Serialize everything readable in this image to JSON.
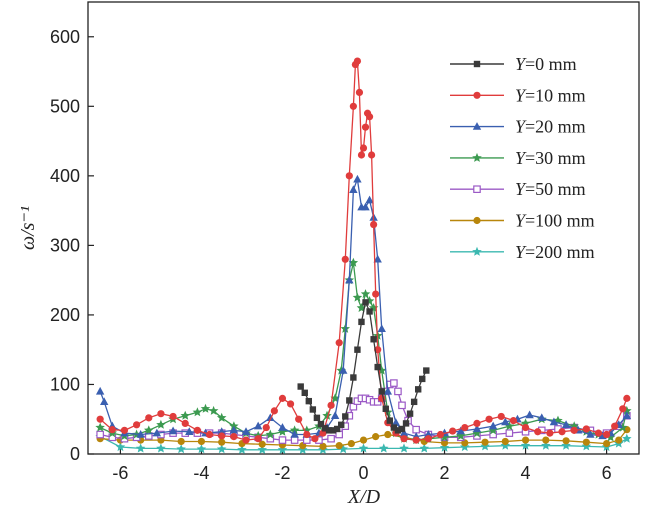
{
  "chart_data": {
    "type": "line",
    "xlabel": "X/D",
    "ylabel": "ω/s⁻¹",
    "xlim": [
      -6.8,
      6.8
    ],
    "ylim": [
      0,
      650
    ],
    "xticks": [
      "-6",
      "-4",
      "-2",
      "0",
      "2",
      "4",
      "6"
    ],
    "xtick_values": [
      -6,
      -4,
      -2,
      0,
      2,
      4,
      6
    ],
    "yticks": [
      "0",
      "100",
      "200",
      "300",
      "400",
      "500",
      "600"
    ],
    "ytick_values": [
      0,
      100,
      200,
      300,
      400,
      500,
      600
    ],
    "legend_position": "top-right",
    "series": [
      {
        "name": "Y=0 mm",
        "prefix": "Y",
        "suffix": "=0 mm",
        "color": "#3a3a3a",
        "marker": "square-filled",
        "x": [
          -1.55,
          -1.45,
          -1.35,
          -1.25,
          -1.15,
          -1.05,
          -0.95,
          -0.85,
          -0.75,
          -0.65,
          -0.55,
          -0.45,
          -0.35,
          -0.25,
          -0.15,
          -0.05,
          0.05,
          0.15,
          0.25,
          0.35,
          0.45,
          0.55,
          0.65,
          0.75,
          0.85,
          0.95,
          1.05,
          1.15,
          1.25,
          1.35,
          1.45,
          1.55
        ],
        "y": [
          97,
          88,
          76,
          64,
          52,
          43,
          37,
          34,
          34,
          36,
          42,
          54,
          77,
          110,
          150,
          190,
          218,
          205,
          165,
          125,
          90,
          65,
          48,
          38,
          34,
          36,
          44,
          58,
          75,
          93,
          108,
          120
        ]
      },
      {
        "name": "Y=10 mm",
        "prefix": "Y",
        "suffix": "=10 mm",
        "color": "#e03c3c",
        "marker": "circle-filled",
        "x": [
          -6.5,
          -6.2,
          -5.9,
          -5.6,
          -5.3,
          -5.0,
          -4.7,
          -4.4,
          -4.1,
          -3.8,
          -3.5,
          -3.2,
          -2.9,
          -2.6,
          -2.4,
          -2.2,
          -2.0,
          -1.8,
          -1.6,
          -1.4,
          -1.2,
          -1.0,
          -0.8,
          -0.6,
          -0.45,
          -0.35,
          -0.25,
          -0.2,
          -0.15,
          -0.1,
          -0.05,
          0.0,
          0.05,
          0.1,
          0.15,
          0.2,
          0.25,
          0.3,
          0.35,
          0.45,
          0.6,
          0.8,
          1.0,
          1.3,
          1.6,
          1.9,
          2.2,
          2.5,
          2.8,
          3.1,
          3.4,
          3.7,
          4.0,
          4.3,
          4.6,
          4.9,
          5.2,
          5.5,
          5.8,
          6.0,
          6.2,
          6.4,
          6.5
        ],
        "y": [
          50,
          35,
          34,
          42,
          52,
          58,
          54,
          44,
          34,
          28,
          26,
          25,
          20,
          22,
          38,
          62,
          80,
          72,
          50,
          28,
          22,
          30,
          70,
          160,
          280,
          400,
          500,
          560,
          565,
          520,
          430,
          440,
          470,
          490,
          485,
          430,
          330,
          230,
          150,
          80,
          45,
          30,
          22,
          20,
          22,
          28,
          33,
          38,
          44,
          50,
          54,
          48,
          38,
          32,
          30,
          32,
          34,
          36,
          30,
          28,
          40,
          65,
          80
        ]
      },
      {
        "name": "Y=20 mm",
        "prefix": "Y",
        "suffix": "=20 mm",
        "color": "#3a5fb0",
        "marker": "triangle-filled",
        "x": [
          -6.5,
          -6.4,
          -6.2,
          -5.9,
          -5.5,
          -5.1,
          -4.7,
          -4.3,
          -3.9,
          -3.5,
          -3.2,
          -2.9,
          -2.6,
          -2.3,
          -2.0,
          -1.7,
          -1.4,
          -1.1,
          -0.9,
          -0.7,
          -0.5,
          -0.35,
          -0.25,
          -0.15,
          -0.05,
          0.05,
          0.15,
          0.25,
          0.35,
          0.45,
          0.6,
          0.8,
          1.0,
          1.3,
          1.6,
          2.0,
          2.4,
          2.8,
          3.2,
          3.5,
          3.8,
          4.1,
          4.4,
          4.7,
          5.0,
          5.3,
          5.6,
          5.9,
          6.1,
          6.3,
          6.5
        ],
        "y": [
          90,
          75,
          40,
          30,
          28,
          30,
          33,
          32,
          30,
          32,
          34,
          32,
          40,
          52,
          38,
          28,
          28,
          30,
          38,
          55,
          120,
          250,
          380,
          395,
          355,
          355,
          365,
          340,
          280,
          180,
          90,
          45,
          30,
          25,
          28,
          30,
          33,
          36,
          40,
          46,
          50,
          56,
          52,
          46,
          42,
          34,
          28,
          26,
          30,
          42,
          55
        ]
      },
      {
        "name": "Y=30 mm",
        "prefix": "Y",
        "suffix": "=30 mm",
        "color": "#3c9a50",
        "marker": "star",
        "x": [
          -6.5,
          -6.2,
          -5.9,
          -5.6,
          -5.3,
          -5.0,
          -4.7,
          -4.4,
          -4.1,
          -3.9,
          -3.7,
          -3.5,
          -3.2,
          -2.9,
          -2.6,
          -2.3,
          -2.0,
          -1.7,
          -1.4,
          -1.1,
          -0.9,
          -0.7,
          -0.55,
          -0.45,
          -0.35,
          -0.25,
          -0.15,
          -0.05,
          0.05,
          0.15,
          0.25,
          0.35,
          0.45,
          0.6,
          0.8,
          1.0,
          1.3,
          1.6,
          2.0,
          2.4,
          2.8,
          3.2,
          3.6,
          4.0,
          4.4,
          4.8,
          5.2,
          5.5,
          5.8,
          6.1,
          6.4,
          6.5
        ],
        "y": [
          38,
          30,
          26,
          28,
          34,
          42,
          50,
          55,
          60,
          65,
          62,
          52,
          40,
          30,
          26,
          28,
          32,
          34,
          34,
          40,
          55,
          80,
          120,
          180,
          250,
          275,
          225,
          210,
          230,
          220,
          210,
          170,
          120,
          60,
          30,
          22,
          20,
          22,
          24,
          26,
          30,
          34,
          40,
          44,
          50,
          48,
          40,
          32,
          28,
          24,
          38,
          62
        ]
      },
      {
        "name": "Y=50 mm",
        "prefix": "Y",
        "suffix": "=50 mm",
        "color": "#9b59c6",
        "marker": "square-open",
        "x": [
          -6.5,
          -6.2,
          -5.9,
          -5.6,
          -5.3,
          -5.0,
          -4.7,
          -4.4,
          -4.1,
          -3.8,
          -3.5,
          -3.2,
          -2.9,
          -2.6,
          -2.3,
          -2.0,
          -1.7,
          -1.4,
          -1.1,
          -0.8,
          -0.6,
          -0.45,
          -0.35,
          -0.25,
          -0.15,
          -0.05,
          0.05,
          0.15,
          0.25,
          0.35,
          0.45,
          0.55,
          0.65,
          0.75,
          0.85,
          0.95,
          1.1,
          1.3,
          1.6,
          2.0,
          2.4,
          2.8,
          3.2,
          3.6,
          4.0,
          4.4,
          4.8,
          5.2,
          5.6,
          6.0,
          6.3,
          6.5
        ],
        "y": [
          28,
          24,
          22,
          24,
          26,
          28,
          30,
          30,
          30,
          30,
          30,
          28,
          26,
          24,
          22,
          20,
          20,
          20,
          20,
          22,
          28,
          40,
          55,
          68,
          76,
          80,
          80,
          78,
          75,
          75,
          80,
          90,
          100,
          102,
          90,
          70,
          48,
          35,
          28,
          24,
          24,
          26,
          28,
          30,
          32,
          34,
          36,
          38,
          34,
          30,
          40,
          55
        ]
      },
      {
        "name": "Y=100 mm",
        "prefix": "Y",
        "suffix": "=100 mm",
        "color": "#b8860b",
        "marker": "circle-filled",
        "x": [
          -6.5,
          -6.0,
          -5.5,
          -5.0,
          -4.5,
          -4.0,
          -3.5,
          -3.0,
          -2.5,
          -2.0,
          -1.5,
          -1.0,
          -0.6,
          -0.3,
          0.0,
          0.3,
          0.6,
          1.0,
          1.5,
          2.0,
          2.5,
          3.0,
          3.5,
          4.0,
          4.5,
          5.0,
          5.5,
          6.0,
          6.3,
          6.5
        ],
        "y": [
          22,
          20,
          20,
          20,
          18,
          18,
          17,
          15,
          14,
          13,
          12,
          11,
          12,
          15,
          20,
          25,
          28,
          24,
          18,
          16,
          16,
          17,
          18,
          20,
          20,
          19,
          17,
          15,
          20,
          35
        ]
      },
      {
        "name": "Y=200 mm",
        "prefix": "Y",
        "suffix": "=200 mm",
        "color": "#3bb8b0",
        "marker": "star",
        "x": [
          -6.5,
          -6.0,
          -5.5,
          -5.0,
          -4.5,
          -4.0,
          -3.5,
          -3.0,
          -2.5,
          -2.0,
          -1.5,
          -1.0,
          -0.5,
          0.0,
          0.5,
          1.0,
          1.5,
          2.0,
          2.5,
          3.0,
          3.5,
          4.0,
          4.5,
          5.0,
          5.5,
          6.0,
          6.3,
          6.5
        ],
        "y": [
          25,
          10,
          8,
          8,
          7,
          7,
          7,
          6,
          6,
          6,
          6,
          6,
          7,
          8,
          8,
          8,
          8,
          9,
          10,
          11,
          12,
          12,
          12,
          12,
          11,
          10,
          15,
          22
        ]
      }
    ]
  }
}
